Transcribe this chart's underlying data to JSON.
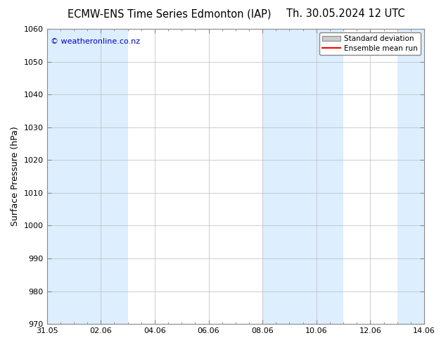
{
  "title_left": "ECMW-ENS Time Series Edmonton (IAP)",
  "title_right": "Th. 30.05.2024 12 UTC",
  "ylabel": "Surface Pressure (hPa)",
  "ylim": [
    970,
    1060
  ],
  "yticks": [
    970,
    980,
    990,
    1000,
    1010,
    1020,
    1030,
    1040,
    1050,
    1060
  ],
  "xtick_labels": [
    "31.05",
    "02.06",
    "04.06",
    "06.06",
    "08.06",
    "10.06",
    "12.06",
    "14.06"
  ],
  "xtick_positions": [
    0,
    2,
    4,
    6,
    8,
    10,
    12,
    14
  ],
  "xlim": [
    0,
    14
  ],
  "shaded_bands": [
    {
      "x_start": 0,
      "x_end": 1,
      "color": "#ddeeff"
    },
    {
      "x_start": 1,
      "x_end": 3,
      "color": "#ddeeff"
    },
    {
      "x_start": 8,
      "x_end": 9,
      "color": "#ddeeff"
    },
    {
      "x_start": 9,
      "x_end": 11,
      "color": "#ddeeff"
    },
    {
      "x_start": 13,
      "x_end": 14,
      "color": "#ddeeff"
    }
  ],
  "legend_std_dev_label": "Standard deviation",
  "legend_mean_label": "Ensemble mean run",
  "legend_std_color": "#cccccc",
  "legend_std_edge_color": "#888888",
  "legend_mean_color": "#ff0000",
  "watermark_text": "© weatheronline.co.nz",
  "watermark_color": "#0000cc",
  "background_color": "#ffffff",
  "plot_bg_color": "#ffffff",
  "grid_color": "#bbbbbb",
  "title_fontsize": 10.5,
  "axis_label_fontsize": 9,
  "tick_fontsize": 8,
  "watermark_fontsize": 8,
  "legend_fontsize": 7.5
}
